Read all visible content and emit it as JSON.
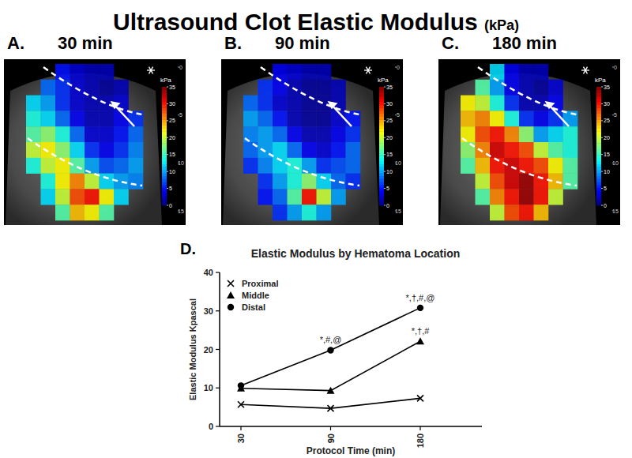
{
  "figure": {
    "title": "Ultrasound Clot Elastic Modulus",
    "title_unit": "(kPa)",
    "chart_label": "D.",
    "colorbar": {
      "label": "kPa",
      "range": [
        0,
        35
      ],
      "ticks": [
        0,
        5,
        10,
        15,
        20,
        25,
        30,
        35
      ]
    },
    "depth": {
      "range": [
        0,
        15
      ],
      "ticks": [
        0,
        5,
        10,
        15
      ]
    },
    "panels": [
      {
        "label": "A.",
        "time": "30 min",
        "cells": [
          [
            null,
            null,
            5,
            3,
            2,
            2,
            null,
            null
          ],
          [
            null,
            8,
            6,
            3,
            2,
            1,
            2,
            null
          ],
          [
            12,
            10,
            6,
            3,
            2,
            2,
            3,
            null
          ],
          [
            14,
            12,
            8,
            4,
            2,
            2,
            4,
            6
          ],
          [
            16,
            18,
            14,
            8,
            3,
            3,
            5,
            8
          ],
          [
            20,
            22,
            18,
            12,
            6,
            4,
            6,
            9
          ],
          [
            14,
            20,
            22,
            16,
            10,
            7,
            8,
            10
          ],
          [
            null,
            14,
            22,
            26,
            20,
            12,
            10,
            9
          ],
          [
            null,
            12,
            20,
            28,
            30,
            22,
            12,
            null
          ],
          [
            null,
            null,
            16,
            24,
            22,
            16,
            null,
            null
          ]
        ]
      },
      {
        "label": "B.",
        "time": "90 min",
        "cells": [
          [
            null,
            null,
            4,
            3,
            2,
            2,
            null,
            null
          ],
          [
            null,
            6,
            4,
            2,
            1,
            1,
            2,
            null
          ],
          [
            8,
            6,
            3,
            2,
            1,
            1,
            2,
            null
          ],
          [
            10,
            8,
            5,
            2,
            1,
            1,
            3,
            5
          ],
          [
            9,
            10,
            8,
            4,
            2,
            2,
            4,
            6
          ],
          [
            8,
            10,
            12,
            8,
            4,
            3,
            5,
            8
          ],
          [
            6,
            9,
            12,
            14,
            10,
            6,
            7,
            8
          ],
          [
            null,
            6,
            10,
            14,
            18,
            12,
            8,
            6
          ],
          [
            null,
            5,
            8,
            16,
            30,
            20,
            10,
            null
          ],
          [
            null,
            null,
            6,
            10,
            14,
            10,
            null,
            null
          ]
        ]
      },
      {
        "label": "C.",
        "time": "180 min",
        "cells": [
          [
            null,
            null,
            12,
            4,
            2,
            2,
            null,
            null
          ],
          [
            null,
            16,
            10,
            4,
            2,
            1,
            3,
            null
          ],
          [
            22,
            20,
            14,
            6,
            2,
            2,
            4,
            null
          ],
          [
            24,
            26,
            22,
            14,
            6,
            4,
            6,
            10
          ],
          [
            22,
            28,
            30,
            26,
            18,
            10,
            12,
            14
          ],
          [
            18,
            26,
            32,
            30,
            28,
            20,
            16,
            14
          ],
          [
            16,
            24,
            30,
            32,
            30,
            28,
            22,
            16
          ],
          [
            null,
            20,
            28,
            32,
            34,
            30,
            24,
            16
          ],
          [
            null,
            16,
            26,
            30,
            34,
            30,
            20,
            null
          ],
          [
            null,
            null,
            20,
            28,
            30,
            24,
            null,
            null
          ]
        ]
      }
    ]
  },
  "chart_data": {
    "type": "line",
    "title": "Elastic Modulus by Hematoma Location",
    "x_label": "Protocol Time (min)",
    "y_label": "Elastic Modulus Kpascal",
    "categories": [
      "30",
      "90",
      "180"
    ],
    "ylim": [
      0,
      40
    ],
    "yticks": [
      0,
      10,
      20,
      30,
      40
    ],
    "grid": false,
    "legend": "top-left",
    "series": [
      {
        "name": "Proximal",
        "color": "#000000",
        "marker": "x",
        "values": [
          5.7,
          4.7,
          7.3
        ]
      },
      {
        "name": "Middle",
        "color": "#000000",
        "marker": "triangle",
        "values": [
          9.9,
          9.3,
          22.1
        ]
      },
      {
        "name": "Distal",
        "color": "#000000",
        "marker": "circle",
        "values": [
          10.6,
          19.8,
          30.8
        ]
      }
    ],
    "annotations": [
      {
        "text": "*,#,@",
        "series": 2,
        "index": 1
      },
      {
        "text": "*,†,#,@",
        "series": 2,
        "index": 2
      },
      {
        "text": "*,†,#",
        "series": 1,
        "index": 2
      }
    ]
  }
}
